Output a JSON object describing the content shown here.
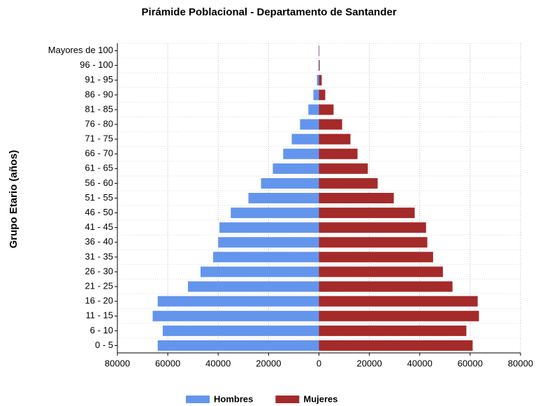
{
  "chart_data": {
    "type": "bar",
    "orientation": "horizontal",
    "stacked": true,
    "title": "Pirámide Poblacional - Departamento de Santander",
    "y_label": "Grupo Etario (años)",
    "categories": [
      "0 - 5",
      "6 - 10",
      "11 - 15",
      "16 - 20",
      "21 - 25",
      "26 - 30",
      "31 - 35",
      "36 - 40",
      "41 - 45",
      "46 - 50",
      "51 - 55",
      "56 - 60",
      "61 - 65",
      "66 - 70",
      "71 - 75",
      "76 - 80",
      "81 - 85",
      "86 - 90",
      "91 - 95",
      "96 - 100",
      "Mayores de 100"
    ],
    "series": [
      {
        "name": "Hombres",
        "color": "#6495ED",
        "values": [
          -64000,
          -62000,
          -66000,
          -64000,
          -52000,
          -47000,
          -42000,
          -40000,
          -39500,
          -35000,
          -28000,
          -23000,
          -18300,
          -14200,
          -10800,
          -7500,
          -4200,
          -2200,
          -800,
          -200,
          -100
        ]
      },
      {
        "name": "Mujeres",
        "color": "#A52A2A",
        "values": [
          61000,
          58500,
          63500,
          63000,
          53000,
          49200,
          45300,
          43000,
          42500,
          38000,
          29700,
          23300,
          19400,
          15300,
          12500,
          9200,
          5800,
          2500,
          1100,
          300,
          150
        ]
      }
    ],
    "xlim": [
      -80000,
      80000
    ],
    "xticks": [
      {
        "value": -80000,
        "label": "80000"
      },
      {
        "value": -60000,
        "label": "60000"
      },
      {
        "value": -40000,
        "label": "40000"
      },
      {
        "value": -20000,
        "label": "20000"
      },
      0,
      20000,
      40000,
      60000,
      80000
    ],
    "grid": true,
    "legend": "bottom"
  }
}
